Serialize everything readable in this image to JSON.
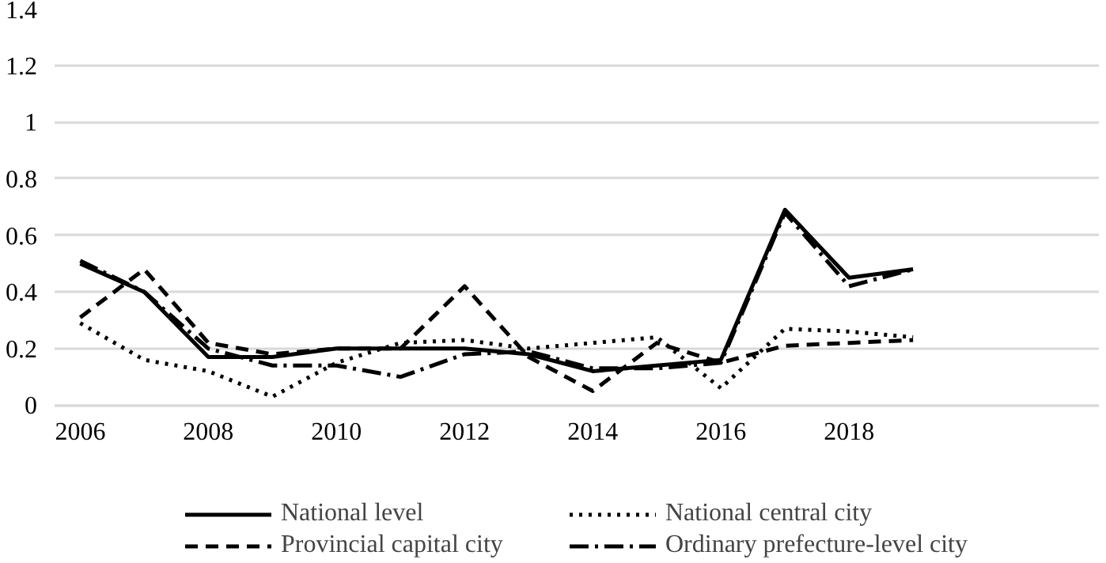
{
  "chart_data": {
    "type": "line",
    "x": [
      2006,
      2007,
      2008,
      2009,
      2010,
      2011,
      2012,
      2013,
      2014,
      2015,
      2016,
      2017,
      2018,
      2019
    ],
    "xlim": [
      2005.6,
      2021.9
    ],
    "xticks": [
      2006,
      2008,
      2010,
      2012,
      2014,
      2016,
      2018
    ],
    "ylim": [
      0,
      1.4
    ],
    "yticks": [
      0,
      0.2,
      0.4,
      0.6,
      0.8,
      1,
      1.2,
      1.4
    ],
    "grid": "y",
    "legend": "bottom",
    "series": [
      {
        "name": "National level",
        "color": "#000000",
        "line_style": "solid",
        "values": [
          0.5,
          0.4,
          0.17,
          0.17,
          0.2,
          0.2,
          0.2,
          0.18,
          0.12,
          0.14,
          0.16,
          0.69,
          0.45,
          0.48
        ]
      },
      {
        "name": "National central city",
        "color": "#000000",
        "line_style": "dotted",
        "values": [
          0.29,
          0.16,
          0.12,
          0.03,
          0.15,
          0.22,
          0.23,
          0.2,
          0.22,
          0.24,
          0.06,
          0.27,
          0.26,
          0.24
        ]
      },
      {
        "name": "Provincial capital city",
        "color": "#000000",
        "line_style": "dashed",
        "values": [
          0.31,
          0.48,
          0.22,
          0.18,
          0.2,
          0.2,
          0.42,
          0.17,
          0.05,
          0.22,
          0.15,
          0.21,
          0.22,
          0.23
        ]
      },
      {
        "name": "Ordinary prefecture-level city",
        "color": "#000000",
        "line_style": "dashdot",
        "values": [
          0.51,
          0.4,
          0.2,
          0.14,
          0.14,
          0.1,
          0.18,
          0.19,
          0.13,
          0.13,
          0.15,
          0.68,
          0.42,
          0.48
        ]
      }
    ]
  }
}
